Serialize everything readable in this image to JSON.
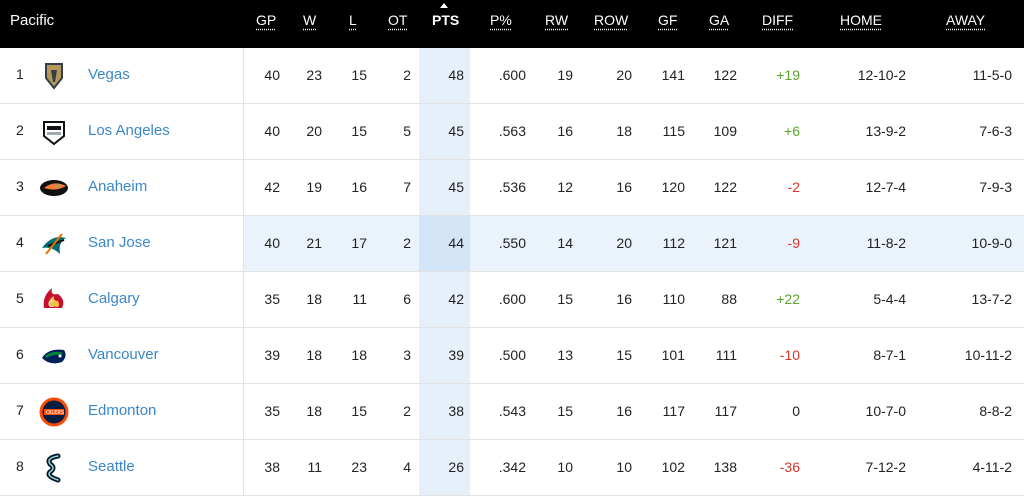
{
  "conference": "Pacific",
  "headers": {
    "gp": "GP",
    "w": "W",
    "l": "L",
    "ot": "OT",
    "pts": "PTS",
    "pct": "P%",
    "rw": "RW",
    "row": "ROW",
    "gf": "GF",
    "ga": "GA",
    "diff": "DIFF",
    "home": "HOME",
    "away": "AWAY"
  },
  "colors": {
    "header_bg": "#000000",
    "team_link": "#3a87c9",
    "diff_positive": "#59a528",
    "diff_negative": "#d8352a",
    "highlight_row": "#eaf3fb",
    "pts_column": "#e6f0fa"
  },
  "rows": [
    {
      "rank": "1",
      "team": "Vegas",
      "logo": "vegas-golden-knights-logo",
      "gp": "40",
      "w": "23",
      "l": "15",
      "ot": "2",
      "pts": "48",
      "pct": ".600",
      "rw": "19",
      "row": "20",
      "gf": "141",
      "ga": "122",
      "diff": "+19",
      "home": "12-10-2",
      "away": "11-5-0"
    },
    {
      "rank": "2",
      "team": "Los Angeles",
      "logo": "los-angeles-kings-logo",
      "gp": "40",
      "w": "20",
      "l": "15",
      "ot": "5",
      "pts": "45",
      "pct": ".563",
      "rw": "16",
      "row": "18",
      "gf": "115",
      "ga": "109",
      "diff": "+6",
      "home": "13-9-2",
      "away": "7-6-3"
    },
    {
      "rank": "3",
      "team": "Anaheim",
      "logo": "anaheim-ducks-logo",
      "gp": "42",
      "w": "19",
      "l": "16",
      "ot": "7",
      "pts": "45",
      "pct": ".536",
      "rw": "12",
      "row": "16",
      "gf": "120",
      "ga": "122",
      "diff": "-2",
      "home": "12-7-4",
      "away": "7-9-3"
    },
    {
      "rank": "4",
      "team": "San Jose",
      "logo": "san-jose-sharks-logo",
      "gp": "40",
      "w": "21",
      "l": "17",
      "ot": "2",
      "pts": "44",
      "pct": ".550",
      "rw": "14",
      "row": "20",
      "gf": "112",
      "ga": "121",
      "diff": "-9",
      "home": "11-8-2",
      "away": "10-9-0"
    },
    {
      "rank": "5",
      "team": "Calgary",
      "logo": "calgary-flames-logo",
      "gp": "35",
      "w": "18",
      "l": "11",
      "ot": "6",
      "pts": "42",
      "pct": ".600",
      "rw": "15",
      "row": "16",
      "gf": "110",
      "ga": "88",
      "diff": "+22",
      "home": "5-4-4",
      "away": "13-7-2"
    },
    {
      "rank": "6",
      "team": "Vancouver",
      "logo": "vancouver-canucks-logo",
      "gp": "39",
      "w": "18",
      "l": "18",
      "ot": "3",
      "pts": "39",
      "pct": ".500",
      "rw": "13",
      "row": "15",
      "gf": "101",
      "ga": "111",
      "diff": "-10",
      "home": "8-7-1",
      "away": "10-11-2"
    },
    {
      "rank": "7",
      "team": "Edmonton",
      "logo": "edmonton-oilers-logo",
      "gp": "35",
      "w": "18",
      "l": "15",
      "ot": "2",
      "pts": "38",
      "pct": ".543",
      "rw": "15",
      "row": "16",
      "gf": "117",
      "ga": "117",
      "diff": "0",
      "home": "10-7-0",
      "away": "8-8-2"
    },
    {
      "rank": "8",
      "team": "Seattle",
      "logo": "seattle-kraken-logo",
      "gp": "38",
      "w": "11",
      "l": "23",
      "ot": "4",
      "pts": "26",
      "pct": ".342",
      "rw": "10",
      "row": "10",
      "gf": "102",
      "ga": "138",
      "diff": "-36",
      "home": "7-12-2",
      "away": "4-11-2"
    }
  ]
}
